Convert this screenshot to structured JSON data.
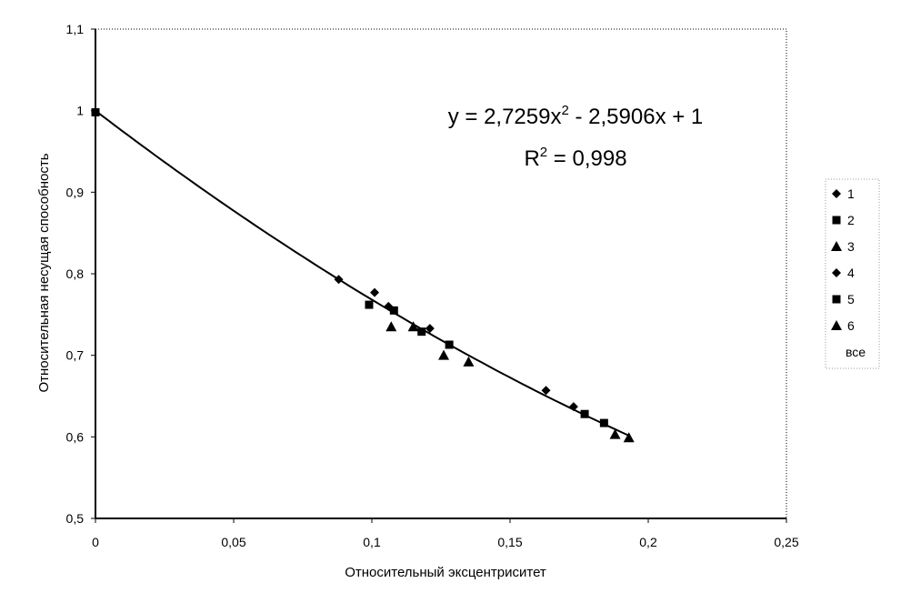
{
  "chart_data": {
    "type": "scatter",
    "xlabel": "Относительный эксцентриситет",
    "ylabel": "Относительная несущая способность",
    "xlim": [
      0,
      0.25
    ],
    "ylim": [
      0.5,
      1.1
    ],
    "x_ticks": [
      "0",
      "0,05",
      "0,1",
      "0,15",
      "0,2",
      "0,25"
    ],
    "y_ticks": [
      "0,5",
      "0,6",
      "0,7",
      "0,8",
      "0,9",
      "1",
      "1,1"
    ],
    "grid": false,
    "legend_position": "right",
    "equation": {
      "prefix": "y = 2,7259x",
      "sup": "2",
      "suffix": " - 2,5906x + 1"
    },
    "r2": {
      "prefix": "R",
      "sup": "2",
      "suffix": " = 0,998"
    },
    "trendline": {
      "a": 2.7259,
      "b": -2.5906,
      "c": 1,
      "x_range": [
        0,
        0.193
      ]
    },
    "series": [
      {
        "name": "1",
        "marker": "diamond",
        "points": [
          [
            0.088,
            0.793
          ],
          [
            0.106,
            0.76
          ],
          [
            0.121,
            0.733
          ],
          [
            0.173,
            0.637
          ]
        ]
      },
      {
        "name": "2",
        "marker": "square",
        "points": [
          [
            0.0,
            0.998
          ],
          [
            0.108,
            0.755
          ],
          [
            0.128,
            0.713
          ],
          [
            0.177,
            0.628
          ]
        ]
      },
      {
        "name": "3",
        "marker": "triangle",
        "points": [
          [
            0.107,
            0.735
          ],
          [
            0.115,
            0.735
          ],
          [
            0.126,
            0.7
          ],
          [
            0.188,
            0.603
          ]
        ]
      },
      {
        "name": "4",
        "marker": "diamond",
        "points": [
          [
            0.101,
            0.777
          ],
          [
            0.163,
            0.657
          ]
        ]
      },
      {
        "name": "5",
        "marker": "square",
        "points": [
          [
            0.099,
            0.762
          ],
          [
            0.118,
            0.729
          ],
          [
            0.184,
            0.617
          ]
        ]
      },
      {
        "name": "6",
        "marker": "triangle",
        "points": [
          [
            0.135,
            0.692
          ],
          [
            0.193,
            0.599
          ]
        ]
      }
    ],
    "legend": [
      "1",
      "2",
      "3",
      "4",
      "5",
      "6",
      "все"
    ]
  }
}
